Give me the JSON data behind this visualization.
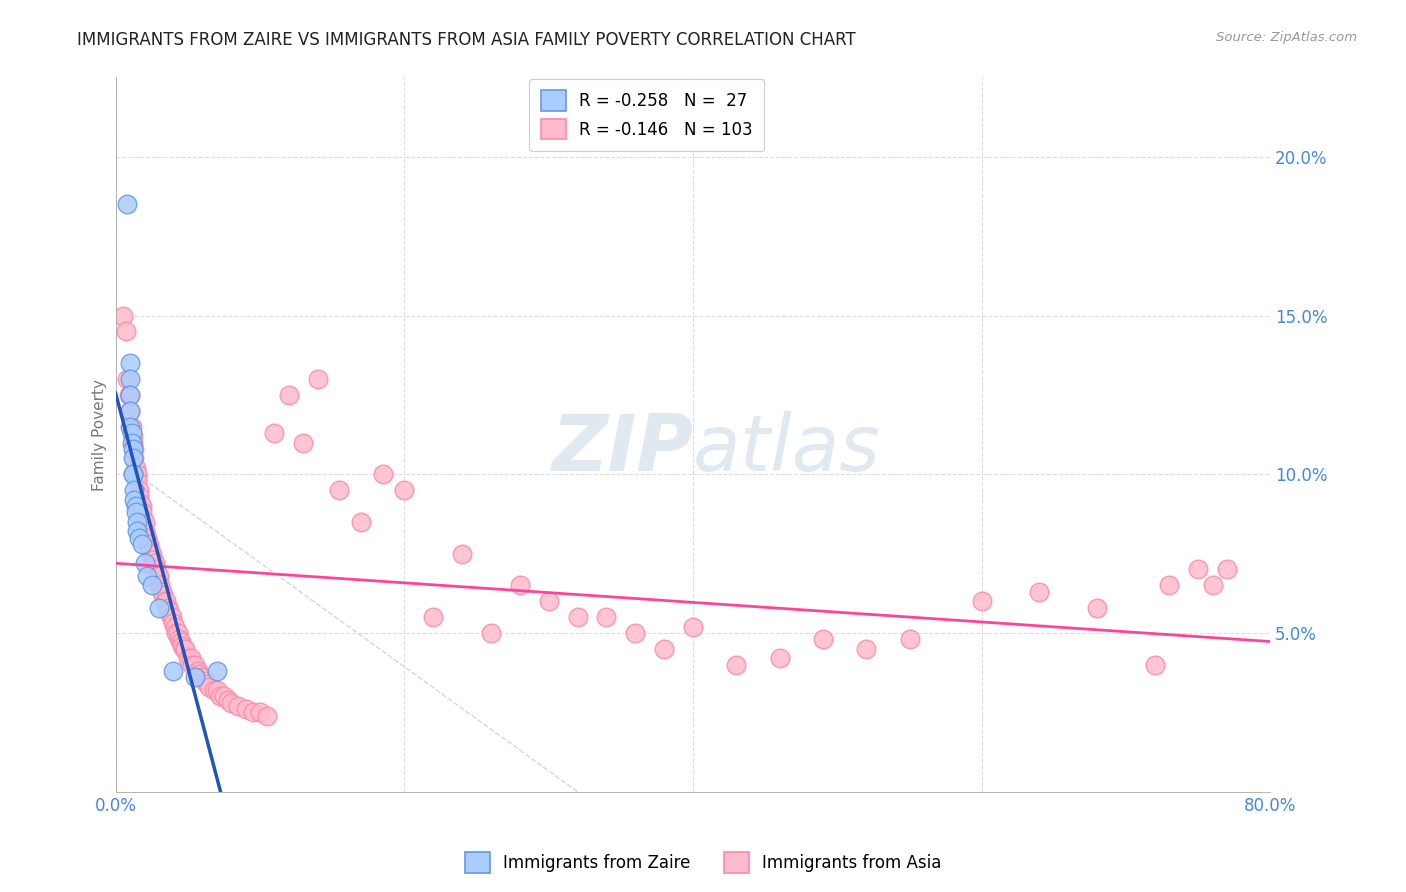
{
  "title": "IMMIGRANTS FROM ZAIRE VS IMMIGRANTS FROM ASIA FAMILY POVERTY CORRELATION CHART",
  "source": "Source: ZipAtlas.com",
  "ylabel": "Family Poverty",
  "x_min": 0.0,
  "x_max": 0.8,
  "y_min": 0.0,
  "y_max": 0.225,
  "y_ticks": [
    0.05,
    0.1,
    0.15,
    0.2
  ],
  "y_tick_labels": [
    "5.0%",
    "10.0%",
    "15.0%",
    "20.0%"
  ],
  "x_ticks": [
    0.0,
    0.2,
    0.4,
    0.6,
    0.8
  ],
  "legend_r1": "-0.258",
  "legend_n1": "27",
  "legend_r2": "-0.146",
  "legend_n2": "103",
  "color_zaire_fill": "#aaccff",
  "color_zaire_edge": "#6699dd",
  "color_asia_fill": "#ffbbcc",
  "color_asia_edge": "#ff88aa",
  "color_zaire_line": "#2255bb",
  "color_asia_line": "#ff4499",
  "color_diag": "#cccccc",
  "background_color": "#ffffff",
  "grid_color": "#dddddd",
  "axis_color": "#aaaaaa",
  "title_color": "#222222",
  "source_color": "#999999",
  "tick_label_color": "#4488dd",
  "watermark_color": "#e0e8f0",
  "zaire_x": [
    0.008,
    0.01,
    0.01,
    0.01,
    0.01,
    0.01,
    0.011,
    0.011,
    0.012,
    0.012,
    0.012,
    0.012,
    0.013,
    0.013,
    0.014,
    0.014,
    0.015,
    0.015,
    0.016,
    0.018,
    0.02,
    0.022,
    0.025,
    0.03,
    0.04,
    0.055,
    0.07
  ],
  "zaire_y": [
    0.185,
    0.135,
    0.13,
    0.125,
    0.12,
    0.115,
    0.113,
    0.11,
    0.108,
    0.105,
    0.1,
    0.1,
    0.095,
    0.092,
    0.09,
    0.088,
    0.085,
    0.082,
    0.08,
    0.078,
    0.072,
    0.068,
    0.065,
    0.058,
    0.038,
    0.036,
    0.038
  ],
  "asia_x": [
    0.005,
    0.007,
    0.008,
    0.009,
    0.01,
    0.01,
    0.011,
    0.012,
    0.012,
    0.013,
    0.013,
    0.014,
    0.015,
    0.015,
    0.016,
    0.016,
    0.017,
    0.018,
    0.018,
    0.019,
    0.02,
    0.02,
    0.022,
    0.022,
    0.023,
    0.024,
    0.025,
    0.026,
    0.027,
    0.028,
    0.029,
    0.03,
    0.03,
    0.031,
    0.032,
    0.033,
    0.034,
    0.035,
    0.036,
    0.037,
    0.038,
    0.039,
    0.04,
    0.041,
    0.042,
    0.043,
    0.044,
    0.045,
    0.046,
    0.047,
    0.048,
    0.05,
    0.052,
    0.053,
    0.055,
    0.057,
    0.058,
    0.06,
    0.062,
    0.063,
    0.065,
    0.068,
    0.07,
    0.072,
    0.075,
    0.078,
    0.08,
    0.085,
    0.09,
    0.095,
    0.1,
    0.105,
    0.11,
    0.12,
    0.13,
    0.14,
    0.155,
    0.17,
    0.185,
    0.2,
    0.22,
    0.24,
    0.26,
    0.28,
    0.3,
    0.32,
    0.34,
    0.36,
    0.38,
    0.4,
    0.43,
    0.46,
    0.49,
    0.52,
    0.55,
    0.6,
    0.64,
    0.68,
    0.72,
    0.73,
    0.75,
    0.76,
    0.77
  ],
  "asia_y": [
    0.15,
    0.145,
    0.13,
    0.125,
    0.125,
    0.12,
    0.115,
    0.112,
    0.11,
    0.108,
    0.105,
    0.102,
    0.1,
    0.098,
    0.095,
    0.093,
    0.091,
    0.09,
    0.088,
    0.086,
    0.085,
    0.082,
    0.08,
    0.078,
    0.078,
    0.076,
    0.075,
    0.073,
    0.072,
    0.07,
    0.068,
    0.068,
    0.065,
    0.065,
    0.063,
    0.062,
    0.06,
    0.06,
    0.058,
    0.057,
    0.055,
    0.055,
    0.053,
    0.052,
    0.05,
    0.05,
    0.048,
    0.047,
    0.046,
    0.045,
    0.045,
    0.042,
    0.042,
    0.04,
    0.04,
    0.038,
    0.037,
    0.036,
    0.035,
    0.034,
    0.033,
    0.032,
    0.032,
    0.03,
    0.03,
    0.029,
    0.028,
    0.027,
    0.026,
    0.025,
    0.025,
    0.024,
    0.113,
    0.125,
    0.11,
    0.13,
    0.095,
    0.085,
    0.1,
    0.095,
    0.055,
    0.075,
    0.05,
    0.065,
    0.06,
    0.055,
    0.055,
    0.05,
    0.045,
    0.052,
    0.04,
    0.042,
    0.048,
    0.045,
    0.048,
    0.06,
    0.063,
    0.058,
    0.04,
    0.065,
    0.07,
    0.065,
    0.07
  ]
}
